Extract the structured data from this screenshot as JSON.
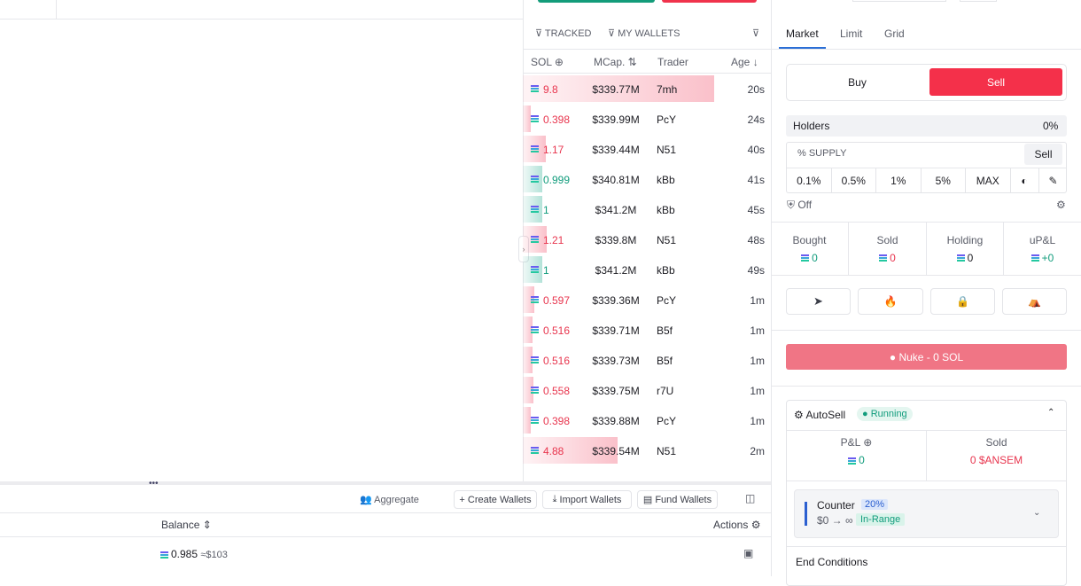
{
  "trades": {
    "filters": [
      "TRACKED",
      "MY WALLETS"
    ],
    "columns": [
      "SOL",
      "MCap.",
      "Trader",
      "Age"
    ],
    "rows": [
      {
        "sol": "9.8",
        "mcap": "$339.77M",
        "trader": "7mh",
        "age": "20s",
        "side": "sell"
      },
      {
        "sol": "0.398",
        "mcap": "$339.99M",
        "trader": "PcY",
        "age": "24s",
        "side": "sell"
      },
      {
        "sol": "1.17",
        "mcap": "$339.44M",
        "trader": "N51",
        "age": "40s",
        "side": "sell"
      },
      {
        "sol": "0.999",
        "mcap": "$340.81M",
        "trader": "kBb",
        "age": "41s",
        "side": "buy"
      },
      {
        "sol": "1",
        "mcap": "$341.2M",
        "trader": "kBb",
        "age": "45s",
        "side": "buy"
      },
      {
        "sol": "1.21",
        "mcap": "$339.8M",
        "trader": "N51",
        "age": "48s",
        "side": "sell"
      },
      {
        "sol": "1",
        "mcap": "$341.2M",
        "trader": "kBb",
        "age": "49s",
        "side": "buy"
      },
      {
        "sol": "0.597",
        "mcap": "$339.36M",
        "trader": "PcY",
        "age": "1m",
        "side": "sell"
      },
      {
        "sol": "0.516",
        "mcap": "$339.71M",
        "trader": "B5f",
        "age": "1m",
        "side": "sell"
      },
      {
        "sol": "0.516",
        "mcap": "$339.73M",
        "trader": "B5f",
        "age": "1m",
        "side": "sell"
      },
      {
        "sol": "0.558",
        "mcap": "$339.75M",
        "trader": "r7U",
        "age": "1m",
        "side": "sell"
      },
      {
        "sol": "0.398",
        "mcap": "$339.88M",
        "trader": "PcY",
        "age": "1m",
        "side": "sell"
      },
      {
        "sol": "4.88",
        "mcap": "$339.54M",
        "trader": "N51",
        "age": "2m",
        "side": "sell"
      }
    ]
  },
  "wallets": {
    "toolbar": [
      "Aggregate",
      "+ Create Wallets",
      "Import Wallets",
      "Fund Wallets"
    ],
    "columns": [
      "Balance",
      "Actions"
    ],
    "rows": [
      {
        "balance": "0.985",
        "usd": "≈$103"
      }
    ]
  },
  "trade_panel": {
    "tabs": [
      "Market",
      "Limit",
      "Grid"
    ],
    "sides": [
      "Buy",
      "Sell"
    ],
    "holders_label": "Holders",
    "holders_value": "0%",
    "supply_label": "% SUPPLY",
    "supply_button": "Sell",
    "presets": [
      "0.1%",
      "0.5%",
      "1%",
      "5%",
      "MAX"
    ],
    "off": "Off",
    "stats": [
      {
        "label": "Bought",
        "value": "0"
      },
      {
        "label": "Sold",
        "value": "0"
      },
      {
        "label": "Holding",
        "value": "0"
      },
      {
        "label": "uP&L",
        "value": "+0"
      }
    ],
    "nuke": "Nuke - 0 SOL",
    "autosell": {
      "title": "AutoSell",
      "status": "Running",
      "pnl_label": "P&L",
      "pnl_value": "0",
      "sold_label": "Sold",
      "sold_value": "0 $ANSEM",
      "counter": "Counter",
      "counter_pct": "20%",
      "range": "$0 → ∞",
      "range_status": "In-Range",
      "end_conditions": "End Conditions"
    }
  }
}
